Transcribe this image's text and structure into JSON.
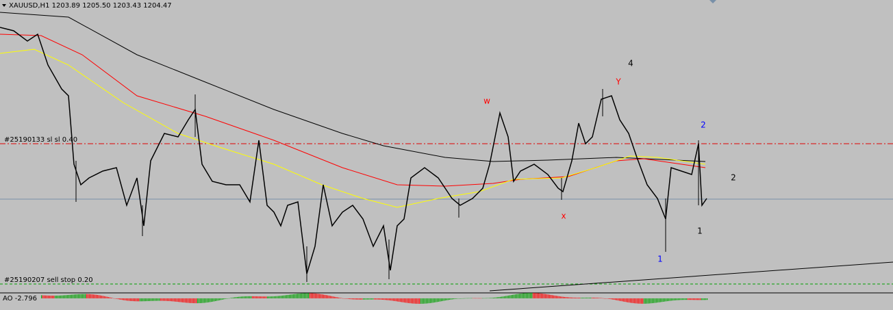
{
  "header": {
    "symbol": "XAUUSD,H1",
    "open": "1203.89",
    "high": "1205.50",
    "low": "1203.43",
    "close": "1204.47"
  },
  "orders": [
    {
      "label": "#25190133 sl sl 0.40"
    },
    {
      "label": "#25190207 sell stop 0.20"
    }
  ],
  "wave_labels": [
    {
      "text": "4",
      "color": "#000000"
    },
    {
      "text": "Y",
      "color": "#ff0000"
    },
    {
      "text": "w",
      "color": "#ff0000"
    },
    {
      "text": "x",
      "color": "#ff0000"
    },
    {
      "text": "2",
      "color": "#0000ff"
    },
    {
      "text": "2",
      "color": "#000000"
    },
    {
      "text": "1",
      "color": "#0000ff"
    },
    {
      "text": "1",
      "color": "#000000"
    }
  ],
  "indicator": {
    "name": "AO",
    "value": "-2.796"
  }
}
